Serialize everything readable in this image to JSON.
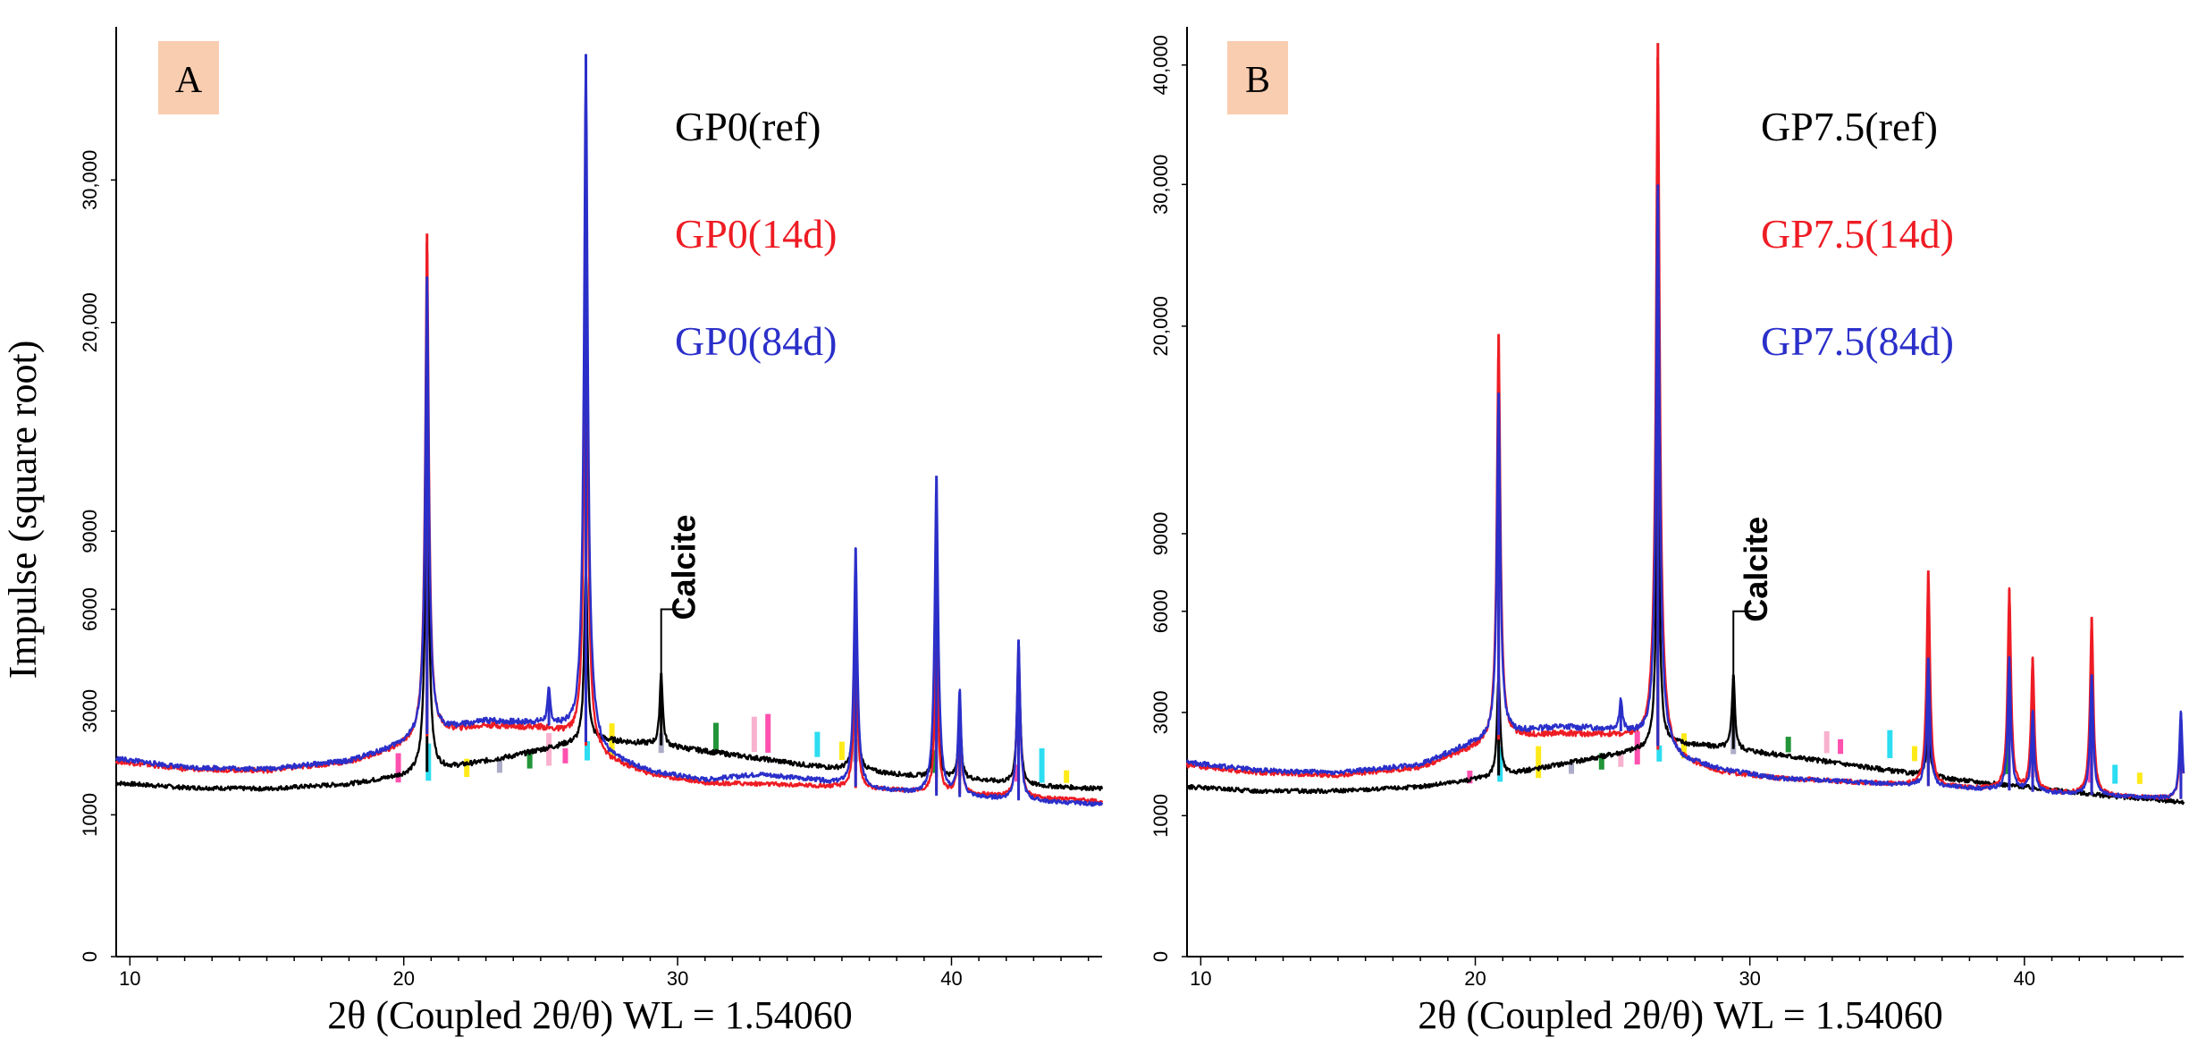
{
  "chart_data": [
    {
      "type": "line",
      "panel_label": "A",
      "xlabel": "2θ (Coupled  2θ/θ)  WL = 1.54060",
      "ylabel": "Impulse (square root)",
      "xlim": [
        9.5,
        45.5
      ],
      "ylim": [
        0,
        43000
      ],
      "y_scale": "sqrt",
      "x_ticks": [
        10,
        20,
        30,
        40
      ],
      "x_tick_labels": [
        "10",
        "20",
        "30",
        "40"
      ],
      "y_ticks": [
        0,
        1000,
        3000,
        6000,
        9000,
        20000,
        30000
      ],
      "y_tick_labels": [
        "0",
        "1000",
        "3000",
        "6000",
        "9000",
        "20,000",
        "30,000"
      ],
      "annotation": {
        "text": "Calcite",
        "x": 29.4,
        "y": 6000
      },
      "series": [
        {
          "name": "GP0(ref)",
          "color": "#000000",
          "x": [
            9.5,
            12,
            15,
            18,
            20,
            22,
            24,
            26,
            27,
            29,
            31,
            33,
            35,
            37,
            39,
            41,
            43,
            45.5
          ],
          "y": [
            1500,
            1420,
            1400,
            1480,
            1620,
            1800,
            2000,
            2250,
            2350,
            2250,
            2100,
            1950,
            1800,
            1700,
            1600,
            1550,
            1450,
            1400
          ],
          "peaks": [
            {
              "x": 20.85,
              "y": 14000
            },
            {
              "x": 26.65,
              "y": 7600
            },
            {
              "x": 29.4,
              "y": 4000
            },
            {
              "x": 36.5,
              "y": 5600
            },
            {
              "x": 39.45,
              "y": 4600
            },
            {
              "x": 40.3,
              "y": 3000
            },
            {
              "x": 42.45,
              "y": 4600
            }
          ]
        },
        {
          "name": "GP0(14d)",
          "color": "#ee1c24",
          "x": [
            9.5,
            12,
            15,
            18,
            19.5,
            21,
            23,
            25,
            26,
            27.5,
            29,
            31,
            33,
            35,
            37,
            39,
            41,
            43,
            45.5
          ],
          "y": [
            1900,
            1750,
            1720,
            1880,
            2100,
            2450,
            2650,
            2600,
            2450,
            1900,
            1650,
            1500,
            1480,
            1450,
            1400,
            1350,
            1300,
            1250,
            1200
          ],
          "peaks": [
            {
              "x": 20.85,
              "y": 26000
            },
            {
              "x": 26.65,
              "y": 25500
            },
            {
              "x": 36.5,
              "y": 5200
            },
            {
              "x": 39.45,
              "y": 4900
            },
            {
              "x": 40.3,
              "y": 3200
            },
            {
              "x": 42.45,
              "y": 4800
            }
          ]
        },
        {
          "name": "GP0(84d)",
          "color": "#2b2fc9",
          "x": [
            9.5,
            12,
            15,
            18,
            19.5,
            21,
            23,
            25,
            26,
            27.5,
            29,
            31,
            33,
            35,
            37,
            39,
            41,
            43,
            45.5
          ],
          "y": [
            1950,
            1780,
            1750,
            1900,
            2150,
            2500,
            2750,
            2700,
            2550,
            1950,
            1700,
            1550,
            1650,
            1550,
            1400,
            1300,
            1250,
            1200,
            1150
          ],
          "peaks": [
            {
              "x": 20.85,
              "y": 23000
            },
            {
              "x": 26.65,
              "y": 40500
            },
            {
              "x": 25.3,
              "y": 3500
            },
            {
              "x": 36.5,
              "y": 8300
            },
            {
              "x": 39.45,
              "y": 11500
            },
            {
              "x": 40.3,
              "y": 3500
            },
            {
              "x": 42.45,
              "y": 5000
            }
          ]
        }
      ]
    },
    {
      "type": "line",
      "panel_label": "B",
      "xlabel": "2θ (Coupled  2θ/θ)  WL = 1.54060",
      "ylabel": "",
      "xlim": [
        9.5,
        45.8
      ],
      "ylim": [
        0,
        43500
      ],
      "y_scale": "sqrt",
      "x_ticks": [
        10,
        20,
        30,
        40
      ],
      "x_tick_labels": [
        "10",
        "20",
        "30",
        "40"
      ],
      "y_ticks": [
        0,
        1000,
        3000,
        6000,
        9000,
        20000,
        30000,
        40000
      ],
      "y_tick_labels": [
        "0",
        "1000",
        "3000",
        "6000",
        "9000",
        "20,000",
        "30,000",
        "40,000"
      ],
      "annotation": {
        "text": "Calcite",
        "x": 29.4,
        "y": 6000
      },
      "series": [
        {
          "name": "GP7.5(ref)",
          "color": "#000000",
          "x": [
            9.5,
            12,
            15,
            18,
            20,
            22,
            24,
            26,
            27,
            29,
            31,
            33,
            35,
            37,
            39,
            41,
            43,
            45.8
          ],
          "y": [
            1450,
            1380,
            1380,
            1450,
            1580,
            1750,
            1950,
            2150,
            2300,
            2200,
            2050,
            1900,
            1750,
            1600,
            1500,
            1400,
            1300,
            1200
          ],
          "peaks": [
            {
              "x": 20.85,
              "y": 4000
            },
            {
              "x": 26.65,
              "y": 12000
            },
            {
              "x": 29.4,
              "y": 4000
            },
            {
              "x": 36.5,
              "y": 3000
            }
          ]
        },
        {
          "name": "GP7.5(14d)",
          "color": "#ee1c24",
          "x": [
            9.5,
            12,
            15,
            18,
            19.5,
            21,
            23,
            25,
            26,
            27.5,
            29,
            31,
            33,
            35,
            37,
            39,
            41,
            43,
            45.8
          ],
          "y": [
            1850,
            1700,
            1650,
            1800,
            2100,
            2400,
            2500,
            2450,
            2350,
            1900,
            1700,
            1600,
            1550,
            1500,
            1450,
            1400,
            1350,
            1300,
            1250
          ],
          "peaks": [
            {
              "x": 20.85,
              "y": 19500
            },
            {
              "x": 26.65,
              "y": 42000
            },
            {
              "x": 36.5,
              "y": 7500
            },
            {
              "x": 39.45,
              "y": 6800
            },
            {
              "x": 40.3,
              "y": 4500
            },
            {
              "x": 42.45,
              "y": 5800
            },
            {
              "x": 45.7,
              "y": 2800
            }
          ]
        },
        {
          "name": "GP7.5(84d)",
          "color": "#2b2fc9",
          "x": [
            9.5,
            12,
            15,
            18,
            19.5,
            21,
            23,
            25,
            26,
            27.5,
            29,
            31,
            33,
            35,
            37,
            39,
            41,
            43,
            45.8
          ],
          "y": [
            1900,
            1750,
            1700,
            1850,
            2200,
            2500,
            2650,
            2600,
            2450,
            1950,
            1750,
            1600,
            1550,
            1500,
            1450,
            1400,
            1350,
            1300,
            1250
          ],
          "peaks": [
            {
              "x": 20.85,
              "y": 16000
            },
            {
              "x": 26.65,
              "y": 30000
            },
            {
              "x": 25.3,
              "y": 3300
            },
            {
              "x": 36.5,
              "y": 4500
            },
            {
              "x": 39.45,
              "y": 4500
            },
            {
              "x": 40.3,
              "y": 3000
            },
            {
              "x": 42.45,
              "y": 4000
            },
            {
              "x": 45.7,
              "y": 3000
            }
          ]
        }
      ]
    }
  ]
}
